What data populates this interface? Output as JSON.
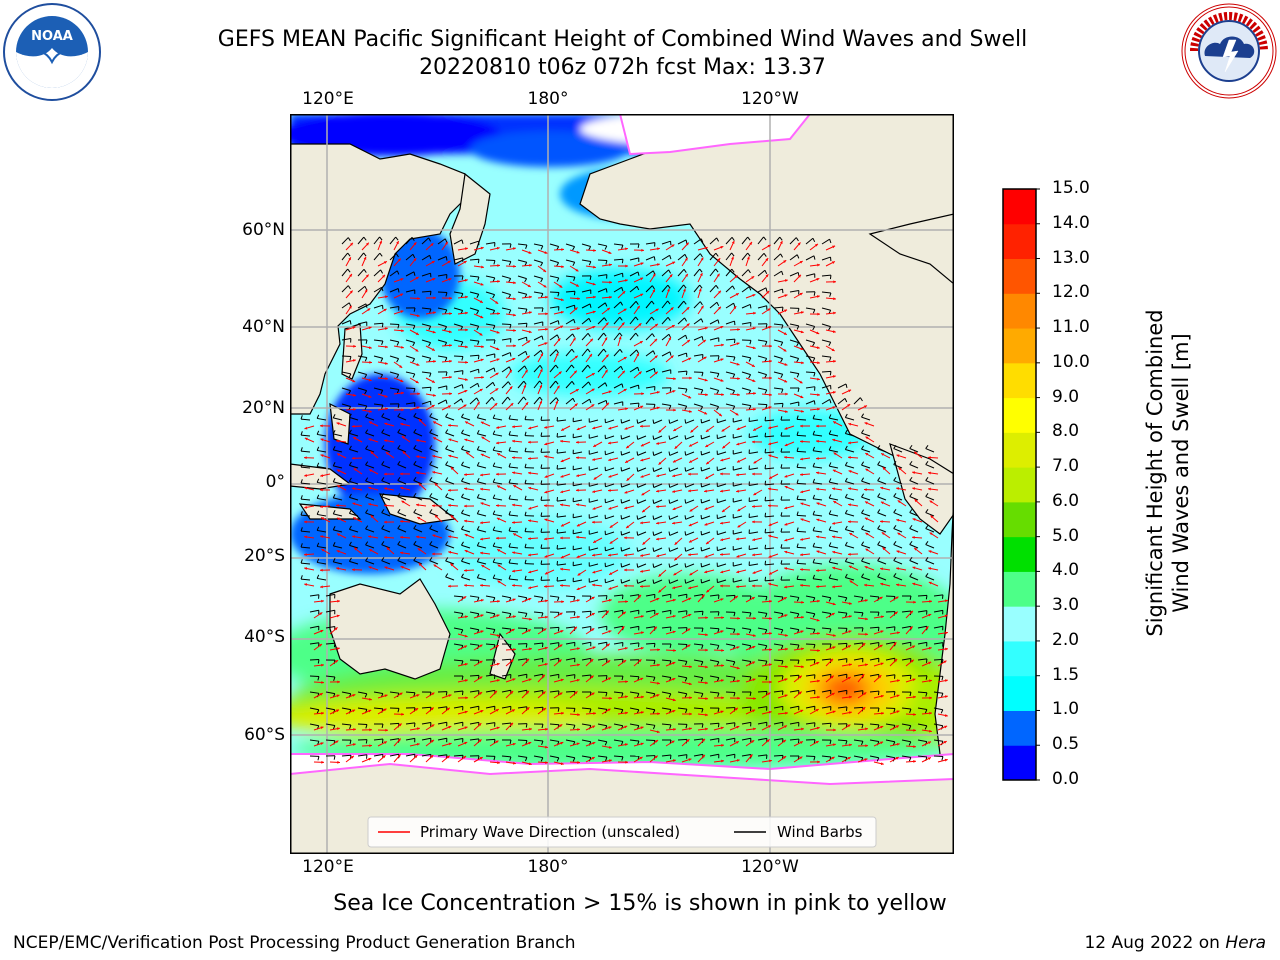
{
  "title": {
    "line1": "GEFS MEAN Pacific Significant Height of Combined Wind Waves and Swell",
    "line2": "20220810 t06z 072h fcst   Max: 13.37"
  },
  "map": {
    "top_lon_labels": [
      "120°E",
      "180°",
      "120°W"
    ],
    "bottom_lon_labels": [
      "120°E",
      "180°",
      "120°W"
    ],
    "lat_labels": [
      "60°N",
      "40°N",
      "20°N",
      "0°",
      "20°S",
      "40°S",
      "60°S"
    ],
    "legend": {
      "wave_label": "Primary Wave Direction (unscaled)",
      "barb_label": "Wind Barbs",
      "wave_color": "#ff0000",
      "barb_color": "#000000"
    },
    "colors": {
      "land": "#efecdc",
      "ocean_base": "#99ffff",
      "gridline": "#b0b0b0"
    }
  },
  "colorbar": {
    "title_line1": "Significant Height of Combined",
    "title_line2": "Wind Waves and Swell [m]",
    "ticks": [
      "0.0",
      "0.5",
      "1.0",
      "1.5",
      "2.0",
      "3.0",
      "4.0",
      "5.0",
      "6.0",
      "7.0",
      "8.0",
      "9.0",
      "10.0",
      "11.0",
      "12.0",
      "13.0",
      "14.0",
      "15.0"
    ],
    "colors": [
      "#0000ff",
      "#0066ff",
      "#00ffff",
      "#33ffff",
      "#99ffff",
      "#4dff88",
      "#00e000",
      "#66dd00",
      "#bbee00",
      "#ddee00",
      "#ffff00",
      "#ffdd00",
      "#ffaa00",
      "#ff8800",
      "#ff5500",
      "#ff2200",
      "#ff0000"
    ]
  },
  "caption": "Sea Ice Concentration > 15% is shown in pink to yellow",
  "footer": {
    "left": "NCEP/EMC/Verification Post Processing Product Generation Branch",
    "right_prefix": "12 Aug 2022 on ",
    "right_host": "Hera"
  },
  "logos": {
    "left": "noaa-logo",
    "right": "national-weather-service-logo"
  },
  "icons": {
    "left": "noaa-bird-icon",
    "right": "nws-lightning-cloud-icon"
  },
  "data": {
    "max_value": 13.37,
    "forecast_hour": "072h",
    "cycle": "t06z",
    "date": "20220810"
  }
}
